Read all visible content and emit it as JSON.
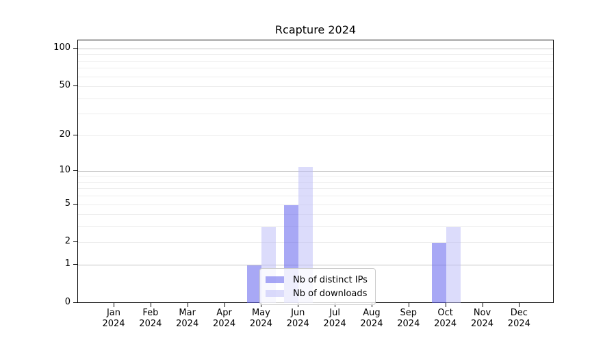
{
  "title": "Rcapture 2024",
  "legend": {
    "items": [
      {
        "label": "Nb of distinct IPs"
      },
      {
        "label": "Nb of downloads"
      }
    ]
  },
  "colors": {
    "bar_distinct_ips": "#a8a8f5",
    "bar_downloads": "#dcdcfb",
    "bar_distinct_ips_fill": "rgba(100,100,238,0.56)",
    "bar_downloads_fill": "rgba(187,187,247,0.52)",
    "major_gridline": "#c3c3c3",
    "minor_gridline": "#ededed",
    "axis": "#000000",
    "legend_border": "#cccccc"
  },
  "chart_data": {
    "type": "bar",
    "title": "Rcapture 2024",
    "categories": [
      "Jan 2024",
      "Feb 2024",
      "Mar 2024",
      "Apr 2024",
      "May 2024",
      "Jun 2024",
      "Jul 2024",
      "Aug 2024",
      "Sep 2024",
      "Oct 2024",
      "Nov 2024",
      "Dec 2024"
    ],
    "series": [
      {
        "name": "Nb of distinct IPs",
        "color": "#a8a8f5",
        "fill": "rgba(100,100,238,0.56)",
        "values": [
          0,
          0,
          0,
          0,
          1,
          5,
          0,
          0,
          0,
          2,
          0,
          0
        ]
      },
      {
        "name": "Nb of downloads",
        "color": "#dcdcfb",
        "fill": "rgba(187,187,247,0.52)",
        "values": [
          0,
          0,
          0,
          0,
          3,
          11,
          0,
          0,
          0,
          3,
          0,
          0
        ]
      }
    ],
    "xlabel": "",
    "ylabel": "",
    "yscale": "log1p",
    "yticks": [
      0,
      1,
      2,
      5,
      10,
      20,
      50,
      100
    ],
    "ylim": [
      0,
      118
    ],
    "major_gridlines": [
      1,
      10,
      100
    ],
    "minor_gridlines": [
      2,
      3,
      4,
      5,
      6,
      7,
      8,
      9,
      20,
      30,
      40,
      50,
      60,
      70,
      80,
      90
    ],
    "grid": true,
    "legend_position": "inside lower-center"
  }
}
